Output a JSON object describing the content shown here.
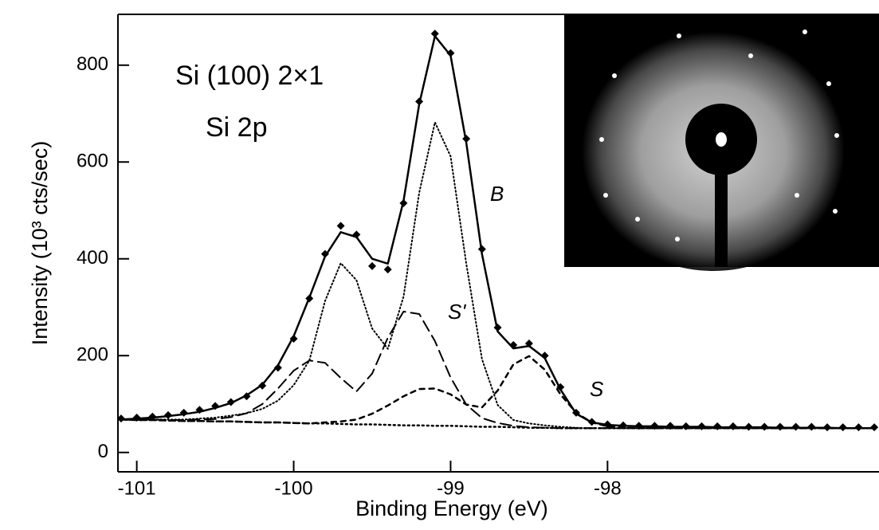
{
  "chart_data": {
    "type": "line",
    "xlabel": "Binding Energy (eV)",
    "ylabel": "Intensity (10³ cts/sec)",
    "annotations": [
      "Si (100) 2×1",
      "Si 2p",
      "B",
      "S'",
      "S"
    ],
    "x": [
      -101.1,
      -101.0,
      -100.9,
      -100.8,
      -100.7,
      -100.6,
      -100.5,
      -100.4,
      -100.3,
      -100.2,
      -100.1,
      -100.0,
      -99.9,
      -99.8,
      -99.7,
      -99.6,
      -99.5,
      -99.4,
      -99.3,
      -99.2,
      -99.1,
      -99.0,
      -98.9,
      -98.8,
      -98.7,
      -98.6,
      -98.5,
      -98.4,
      -98.3,
      -98.2,
      -98.1,
      -98.0,
      -97.9,
      -97.8,
      -97.7,
      -97.6,
      -97.5,
      -97.4,
      -97.3,
      -97.2,
      -97.1,
      -97.0,
      -96.9,
      -96.8,
      -96.7,
      -96.6,
      -96.5,
      -96.4,
      -96.3
    ],
    "series": [
      {
        "style": "markers",
        "color": "#000000",
        "values": [
          70,
          72,
          74,
          77,
          82,
          88,
          96,
          104,
          116,
          138,
          175,
          235,
          318,
          410,
          468,
          450,
          385,
          378,
          515,
          725,
          865,
          825,
          648,
          420,
          258,
          222,
          225,
          200,
          135,
          82,
          63,
          58,
          56,
          55,
          55,
          55,
          54,
          54,
          54,
          54,
          53,
          53,
          53,
          53,
          53,
          52,
          52,
          52,
          52
        ]
      },
      {
        "style": "solid",
        "color": "#000000",
        "values": [
          68,
          70,
          72,
          75,
          79,
          84,
          92,
          102,
          118,
          140,
          180,
          240,
          320,
          405,
          455,
          445,
          400,
          390,
          520,
          720,
          860,
          820,
          640,
          410,
          250,
          215,
          220,
          195,
          130,
          80,
          62,
          57,
          55,
          54,
          54,
          53,
          53,
          53,
          52,
          52,
          52,
          52,
          51,
          51,
          51,
          51,
          50,
          50,
          50
        ]
      },
      {
        "style": "dotted",
        "color": "#000000",
        "values": [
          68,
          67,
          68,
          68,
          68,
          70,
          72,
          76,
          81,
          90,
          107,
          139,
          190,
          313,
          391,
          356,
          256,
          214,
          322,
          537,
          682,
          612,
          390,
          193,
          98,
          67,
          60,
          56,
          53,
          51,
          50,
          50,
          50,
          50,
          50,
          50,
          50,
          50,
          50,
          50,
          50,
          50,
          50,
          50,
          50,
          50,
          50,
          50,
          50
        ]
      },
      {
        "style": "dashed",
        "color": "#000000",
        "values": [
          68,
          67,
          68,
          67,
          67,
          68,
          69,
          73,
          81,
          100,
          132,
          169,
          190,
          185,
          154,
          126,
          163,
          237,
          291,
          286,
          230,
          155,
          99,
          71,
          61,
          55,
          52,
          51,
          50,
          50,
          50,
          50,
          50,
          50,
          50,
          50,
          50,
          50,
          50,
          50,
          50,
          50,
          50,
          50,
          50,
          50,
          50,
          50,
          50
        ]
      },
      {
        "style": "short-dashed",
        "color": "#000000",
        "values": [
          68,
          67,
          67,
          66,
          65,
          65,
          64,
          64,
          63,
          62,
          62,
          61,
          60,
          62,
          64,
          68,
          80,
          97,
          116,
          131,
          132,
          120,
          99,
          93,
          128,
          182,
          199,
          171,
          120,
          82,
          62,
          54,
          51,
          50,
          50,
          50,
          50,
          50,
          50,
          50,
          50,
          50,
          50,
          50,
          50,
          50,
          50,
          50,
          50
        ]
      },
      {
        "style": "background",
        "color": "#000000",
        "values": [
          68,
          67,
          67,
          66,
          65,
          65,
          64,
          64,
          63,
          62,
          62,
          61,
          60,
          60,
          59,
          58,
          58,
          57,
          56,
          56,
          55,
          55,
          54,
          53,
          53,
          52,
          51,
          51,
          50,
          50,
          50,
          50,
          50,
          50,
          50,
          50,
          50,
          50,
          50,
          50,
          50,
          50,
          50,
          50,
          50,
          50,
          50,
          50,
          50
        ]
      }
    ],
    "xlim": [
      -101.12,
      -96.27
    ],
    "xticks": [
      -101,
      -100,
      -99,
      -98
    ],
    "ylim": [
      -40,
      905
    ],
    "yticks": [
      0,
      200,
      400,
      600,
      800
    ]
  }
}
